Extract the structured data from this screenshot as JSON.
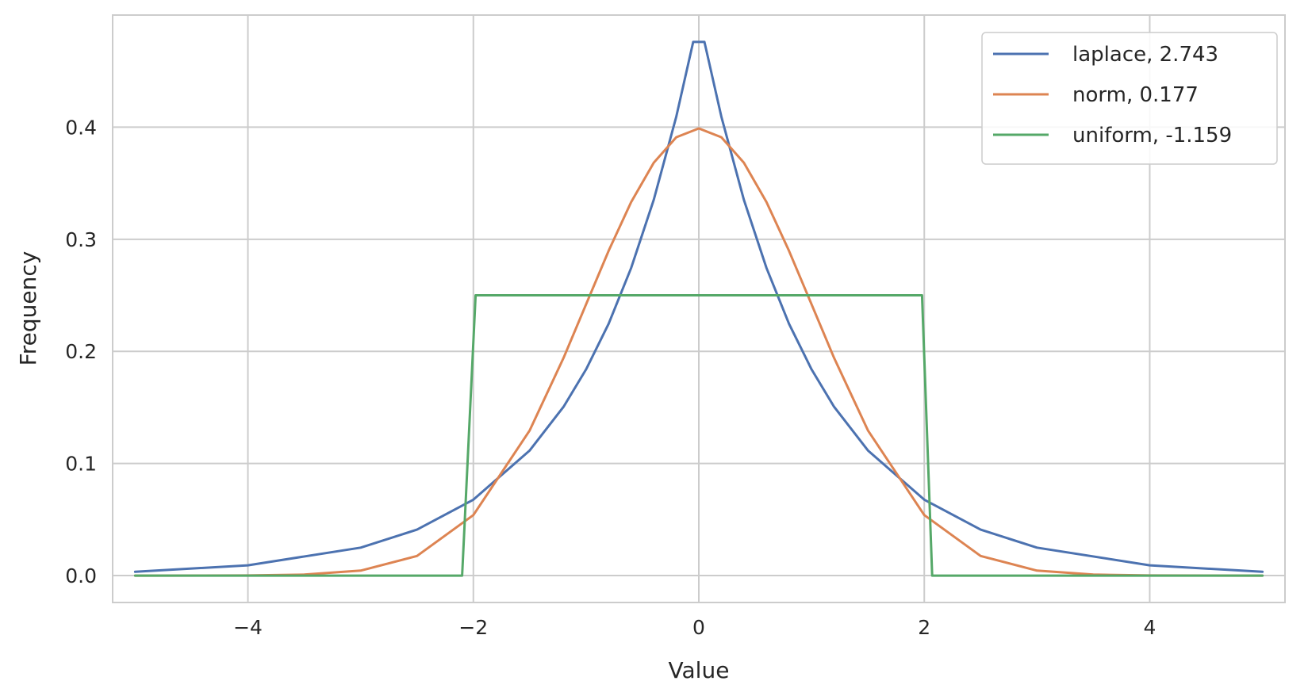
{
  "chart_data": {
    "type": "line",
    "title": "",
    "xlabel": "Value",
    "ylabel": "Frequency",
    "xlim": [
      -5.2,
      5.2
    ],
    "ylim": [
      -0.024,
      0.5
    ],
    "xticks": [
      -4,
      -2,
      0,
      2,
      4
    ],
    "xtick_labels": [
      "−4",
      "−2",
      "0",
      "2",
      "4"
    ],
    "yticks": [
      0.0,
      0.1,
      0.2,
      0.3,
      0.4
    ],
    "ytick_labels": [
      "0.0",
      "0.1",
      "0.2",
      "0.3",
      "0.4"
    ],
    "grid": true,
    "legend_position": "top-right",
    "series": [
      {
        "name": "laplace, 2.743",
        "color": "#4c72b0",
        "x": [
          -5.0,
          -4.0,
          -3.0,
          -2.5,
          -2.0,
          -1.5,
          -1.2,
          -1.0,
          -0.8,
          -0.6,
          -0.4,
          -0.2,
          -0.05,
          0.05,
          0.2,
          0.4,
          0.6,
          0.8,
          1.0,
          1.2,
          1.5,
          2.0,
          2.5,
          3.0,
          4.0,
          5.0
        ],
        "y": [
          0.0034,
          0.0092,
          0.0249,
          0.041,
          0.0677,
          0.1116,
          0.1506,
          0.184,
          0.2246,
          0.2744,
          0.3352,
          0.4094,
          0.476,
          0.476,
          0.4094,
          0.3352,
          0.2744,
          0.2246,
          0.184,
          0.1506,
          0.1116,
          0.0677,
          0.041,
          0.0249,
          0.0092,
          0.0034
        ]
      },
      {
        "name": "norm, 0.177",
        "color": "#dd8452",
        "x": [
          -5.0,
          -4.0,
          -3.5,
          -3.0,
          -2.5,
          -2.0,
          -1.5,
          -1.2,
          -1.0,
          -0.8,
          -0.6,
          -0.4,
          -0.2,
          0.0,
          0.2,
          0.4,
          0.6,
          0.8,
          1.0,
          1.2,
          1.5,
          2.0,
          2.5,
          3.0,
          3.5,
          4.0,
          5.0
        ],
        "y": [
          0.0,
          0.0001,
          0.0009,
          0.0044,
          0.0175,
          0.054,
          0.1295,
          0.1942,
          0.242,
          0.2897,
          0.3332,
          0.3683,
          0.391,
          0.3989,
          0.391,
          0.3683,
          0.3332,
          0.2897,
          0.242,
          0.1942,
          0.1295,
          0.054,
          0.0175,
          0.0044,
          0.0009,
          0.0001,
          0.0
        ]
      },
      {
        "name": "uniform, -1.159",
        "color": "#55a868",
        "x": [
          -5.0,
          -2.1,
          -1.98,
          1.98,
          2.07,
          5.0
        ],
        "y": [
          0.0,
          0.0,
          0.25,
          0.25,
          0.0,
          0.0
        ]
      }
    ]
  }
}
